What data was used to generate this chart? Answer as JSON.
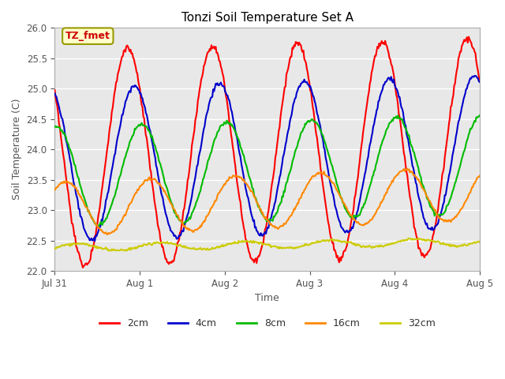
{
  "title": "Tonzi Soil Temperature Set A",
  "xlabel": "Time",
  "ylabel": "Soil Temperature (C)",
  "ylim": [
    22.0,
    26.0
  ],
  "yticks": [
    22.0,
    22.5,
    23.0,
    23.5,
    24.0,
    24.5,
    25.0,
    25.5,
    26.0
  ],
  "annotation_text": "TZ_fmet",
  "annotation_bbox": {
    "boxstyle": "round,pad=0.3",
    "facecolor": "#ffffcc",
    "edgecolor": "#999900",
    "linewidth": 1.5
  },
  "annotation_color": "#cc0000",
  "annotation_fontsize": 9,
  "annotation_fontweight": "bold",
  "line_colors": {
    "2cm": "#ff0000",
    "4cm": "#0000cc",
    "8cm": "#00bb00",
    "16cm": "#ff8800",
    "32cm": "#cccc00"
  },
  "axes_facecolor": "#e8e8e8",
  "fig_facecolor": "#ffffff",
  "grid_color": "#ffffff",
  "grid_linewidth": 1.0,
  "line_linewidth": 1.5,
  "xtick_positions": [
    0.0,
    1.0,
    2.0,
    3.0,
    4.0,
    5.0
  ],
  "xtick_labels": [
    "Jul 31",
    "Aug 1",
    "Aug 2",
    "Aug 3",
    "Aug 4",
    "Aug 5"
  ],
  "time_start": 0.0,
  "time_end": 5.0,
  "n_points": 500
}
